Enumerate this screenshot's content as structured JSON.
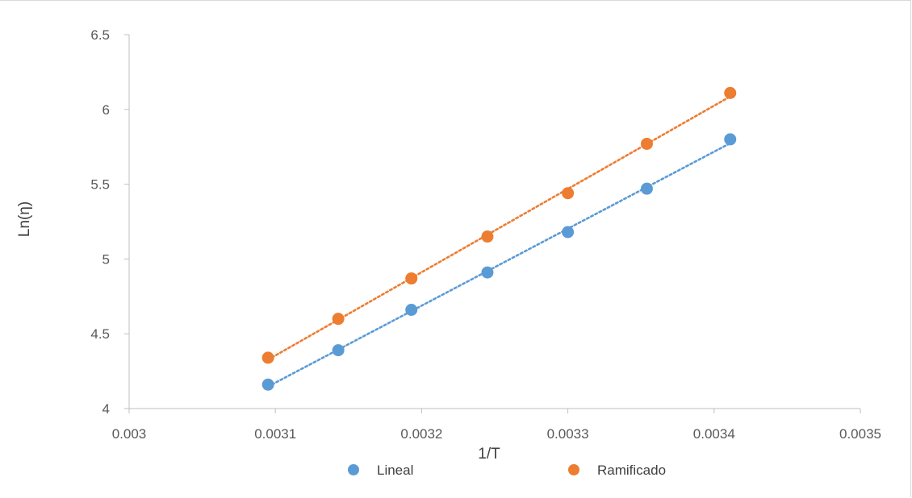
{
  "chart_data": {
    "type": "scatter",
    "title": "",
    "xlabel": "1/T",
    "ylabel": "Ln(η)",
    "xlim": [
      0.003,
      0.0035
    ],
    "ylim": [
      4,
      6.5
    ],
    "x_ticks": [
      "0.003",
      "0.0031",
      "0.0032",
      "0.0033",
      "0.0034",
      "0.0035"
    ],
    "y_ticks": [
      "4",
      "4.5",
      "5",
      "5.5",
      "6",
      "6.5"
    ],
    "grid": false,
    "legend_position": "bottom",
    "trendline": "linear, dotted",
    "series": [
      {
        "name": "Lineal",
        "color": "#5b9bd5",
        "x": [
          0.003095,
          0.003143,
          0.003193,
          0.003245,
          0.0033,
          0.003354,
          0.003411
        ],
        "y": [
          4.16,
          4.39,
          4.66,
          4.91,
          5.18,
          5.47,
          5.8
        ]
      },
      {
        "name": "Ramificado",
        "color": "#ed7d31",
        "x": [
          0.003095,
          0.003143,
          0.003193,
          0.003245,
          0.0033,
          0.003354,
          0.003411
        ],
        "y": [
          4.34,
          4.6,
          4.87,
          5.15,
          5.44,
          5.77,
          6.11
        ]
      }
    ]
  }
}
